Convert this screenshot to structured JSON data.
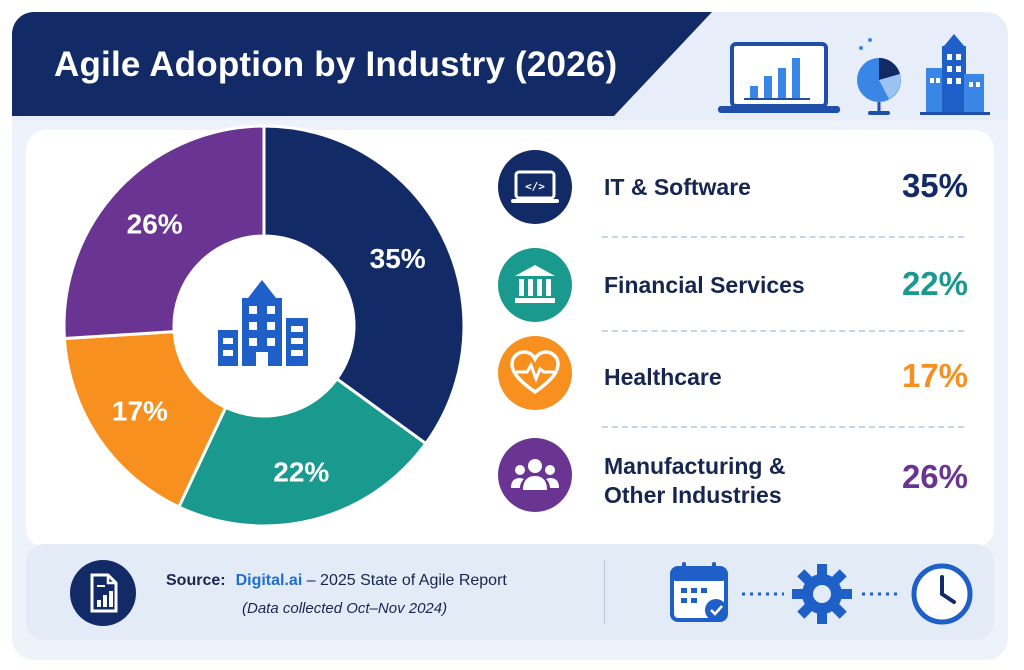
{
  "header": {
    "title": "Agile Adoption by Industry (2026)",
    "icons": [
      "laptop-bar-chart-icon",
      "globe-pie-chart-icon",
      "city-buildings-icon"
    ]
  },
  "chart_data": {
    "type": "pie",
    "title": "Agile Adoption by Industry (2026)",
    "center_icon": "building-icon",
    "slices": [
      {
        "label": "IT & Software",
        "value": 35,
        "value_label": "35%",
        "color": "#122a66",
        "icon": "laptop-code-icon"
      },
      {
        "label": "Financial Services",
        "value": 22,
        "value_label": "22%",
        "color": "#1a9a8e",
        "icon": "bank-icon"
      },
      {
        "label": "Healthcare",
        "value": 17,
        "value_label": "17%",
        "color": "#f7901e",
        "icon": "heart-pulse-icon"
      },
      {
        "label": "Manufacturing &\nOther Industries",
        "value": 26,
        "value_label": "26%",
        "color": "#6a3592",
        "icon": "people-group-icon"
      }
    ]
  },
  "footer": {
    "source_label": "Source:",
    "source_brand": "Digital.ai",
    "source_rest": " – 2025 State of Agile Report",
    "source_note": "(Data collected Oct–Nov 2024)",
    "icons": [
      "report-document-icon",
      "calendar-check-icon",
      "gear-icon",
      "clock-icon"
    ]
  }
}
